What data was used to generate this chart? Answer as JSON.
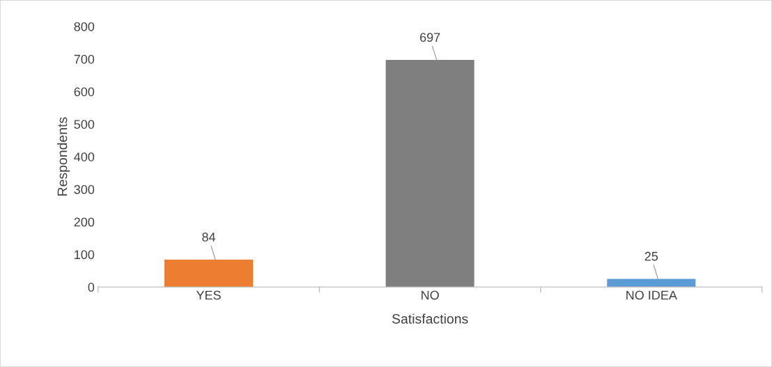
{
  "chart_data": {
    "type": "bar",
    "xlabel": "Satisfactions",
    "ylabel": "Respondents",
    "categories": [
      "YES",
      "NO",
      "NO IDEA"
    ],
    "values": [
      84,
      697,
      25
    ],
    "colors": [
      "#ed7d31",
      "#7f7f7f",
      "#5b9bd5"
    ],
    "ylim": [
      0,
      800
    ],
    "yticks": [
      0,
      100,
      200,
      300,
      400,
      500,
      600,
      700,
      800
    ],
    "data_labels": true,
    "grid": false,
    "legend": false
  }
}
